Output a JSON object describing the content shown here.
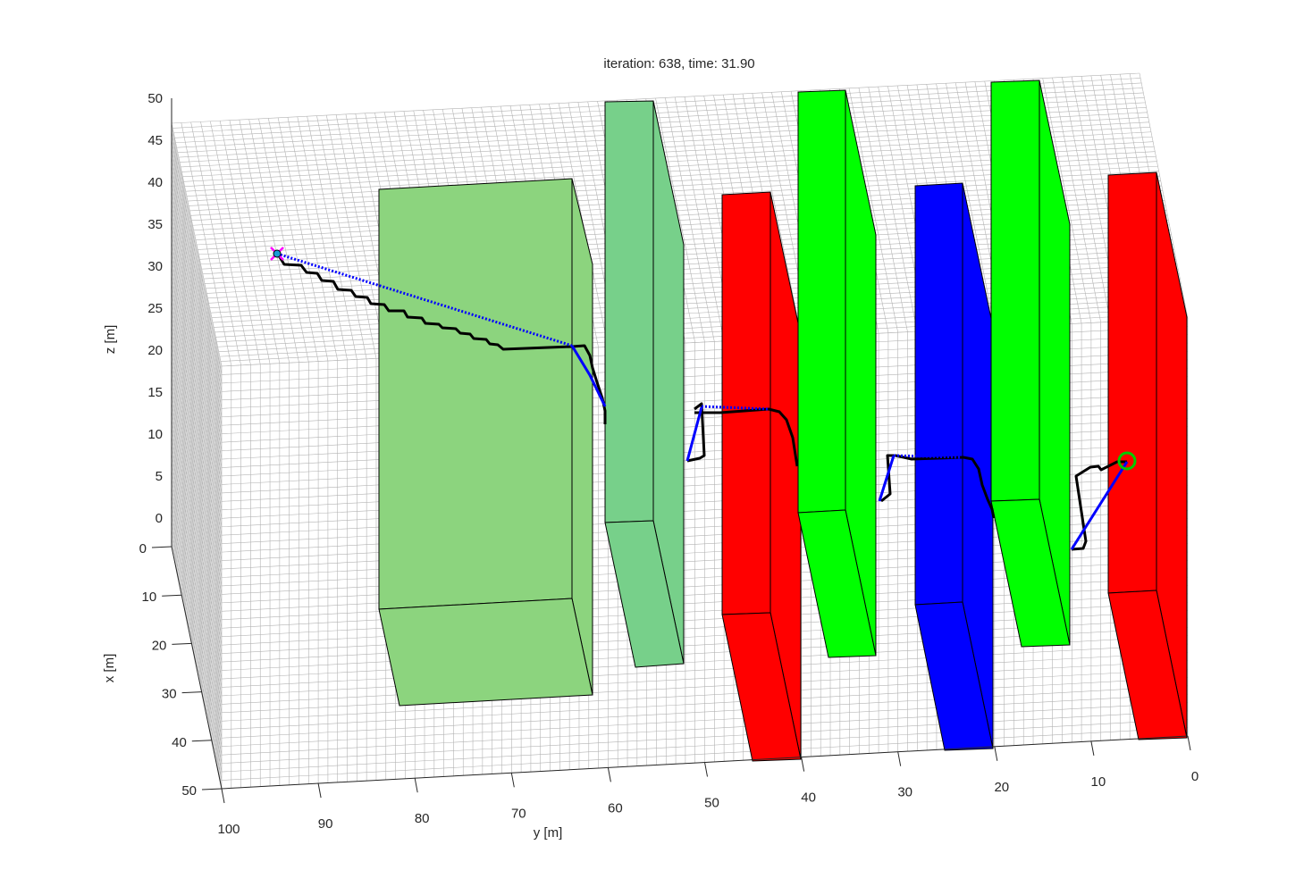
{
  "chart_data": {
    "type": "3d-scene",
    "title": "iteration: 638, time: 31.90",
    "xlabel": "x [m]",
    "ylabel": "y [m]",
    "zlabel": "z [m]",
    "xlim": [
      0,
      50
    ],
    "ylim": [
      0,
      100
    ],
    "zlim": [
      0,
      50
    ],
    "x_ticks": [
      "0",
      "10",
      "20",
      "30",
      "40",
      "50"
    ],
    "y_ticks": [
      "100",
      "90",
      "80",
      "70",
      "60",
      "50",
      "40",
      "30",
      "20",
      "10",
      "0"
    ],
    "z_ticks": [
      "0",
      "5",
      "10",
      "15",
      "20",
      "25",
      "30",
      "35",
      "40",
      "45",
      "50"
    ],
    "grid": "on",
    "obstacles": [
      {
        "name": "block-light-green",
        "color": "#8cd47e"
      },
      {
        "name": "wall-teal-green",
        "color": "#77d08a"
      },
      {
        "name": "wall-red-1",
        "color": "#ff0000"
      },
      {
        "name": "wall-green-1",
        "color": "#00ff00"
      },
      {
        "name": "wall-blue",
        "color": "#0000ff"
      },
      {
        "name": "wall-green-2",
        "color": "#00ff00"
      },
      {
        "name": "wall-red-2",
        "color": "#ff0000"
      }
    ],
    "series": [
      {
        "style": "black-solid",
        "color": "#000000"
      },
      {
        "style": "blue-solid",
        "color": "#0000ff"
      },
      {
        "style": "blue-dotted",
        "color": "#0000ff"
      }
    ],
    "markers": [
      {
        "kind": "start",
        "color": "#ff00ff"
      },
      {
        "kind": "goal",
        "color": "#00cc00"
      }
    ]
  }
}
